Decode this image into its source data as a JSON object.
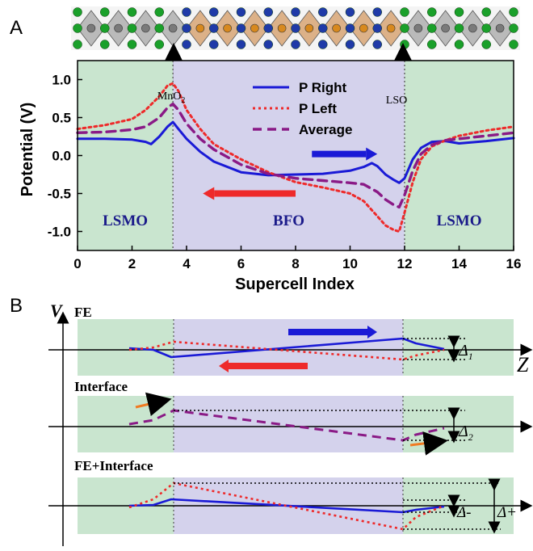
{
  "colors": {
    "lsmo_region": "#c9e5cf",
    "bfo_region": "#d4d2ec",
    "p_right": "#1a1ad6",
    "p_left": "#ee2a2a",
    "average": "#8a1a86",
    "interface_arrow": "#f07a22",
    "atom_green": "#1aa02a",
    "atom_blue": "#1f3aa8",
    "octa_gray": "#8a8a8a",
    "octa_orange": "#c87a30"
  },
  "panels": {
    "a_label": "A",
    "b_label": "B"
  },
  "chart_data": {
    "type": "line",
    "xlabel": "Supercell Index",
    "ylabel": "Potential (V)",
    "xlim": [
      0,
      16
    ],
    "ylim": [
      -1.25,
      1.25
    ],
    "xticks": [
      0,
      2,
      4,
      6,
      8,
      10,
      12,
      14,
      16
    ],
    "yticks": [
      1.0,
      0.5,
      0.0,
      -0.5,
      -1.0
    ],
    "ytick_labels": [
      "1.0",
      "0.5",
      "0.0",
      "-0.5",
      "-1.0"
    ],
    "legend_position": "top-center",
    "regions": [
      {
        "label": "LSMO",
        "from": 0,
        "to": 3.5
      },
      {
        "label": "BFO",
        "from": 3.5,
        "to": 12
      },
      {
        "label": "LSMO",
        "from": 12,
        "to": 16
      }
    ],
    "interfaces": [
      {
        "label": "MnO2",
        "label_main": "MnO",
        "label_sub": "2",
        "x": 3.5
      },
      {
        "label": "LSO",
        "x": 12
      }
    ],
    "series": [
      {
        "name": "P Right",
        "style": "solid",
        "x": [
          0,
          1,
          2,
          2.5,
          2.7,
          3.0,
          3.3,
          3.5,
          3.7,
          4.0,
          4.5,
          5.0,
          6.0,
          7.0,
          8.0,
          9.0,
          10.0,
          10.5,
          10.8,
          11.0,
          11.3,
          11.6,
          11.8,
          12.0,
          12.3,
          12.6,
          13.0,
          13.5,
          14.0,
          15.0,
          16.0
        ],
        "values": [
          0.22,
          0.22,
          0.21,
          0.18,
          0.15,
          0.25,
          0.38,
          0.44,
          0.35,
          0.22,
          0.05,
          -0.08,
          -0.22,
          -0.26,
          -0.25,
          -0.24,
          -0.2,
          -0.15,
          -0.1,
          -0.14,
          -0.25,
          -0.32,
          -0.36,
          -0.3,
          -0.05,
          0.1,
          0.18,
          0.19,
          0.16,
          0.19,
          0.23
        ]
      },
      {
        "name": "P Left",
        "style": "dotted",
        "x": [
          0,
          1,
          2,
          2.5,
          3.0,
          3.3,
          3.5,
          3.7,
          4.0,
          4.5,
          5.0,
          6.0,
          7.0,
          8.0,
          9.0,
          10.0,
          10.5,
          11.0,
          11.3,
          11.6,
          11.8,
          12.0,
          12.3,
          12.6,
          13.0,
          13.5,
          14.0,
          15.0,
          16.0
        ],
        "values": [
          0.35,
          0.4,
          0.48,
          0.6,
          0.78,
          0.92,
          0.95,
          0.85,
          0.6,
          0.35,
          0.15,
          -0.05,
          -0.22,
          -0.35,
          -0.42,
          -0.5,
          -0.6,
          -0.8,
          -0.92,
          -0.98,
          -1.0,
          -0.75,
          -0.35,
          -0.05,
          0.12,
          0.2,
          0.26,
          0.33,
          0.38
        ]
      },
      {
        "name": "Average",
        "style": "dashed",
        "x": [
          0,
          1,
          2,
          2.5,
          3.0,
          3.3,
          3.5,
          3.7,
          4.0,
          4.5,
          5.0,
          6.0,
          7.0,
          8.0,
          9.0,
          10.0,
          10.5,
          11.0,
          11.3,
          11.6,
          11.8,
          12.0,
          12.3,
          12.6,
          13.0,
          13.5,
          14.0,
          15.0,
          16.0
        ],
        "values": [
          0.3,
          0.31,
          0.34,
          0.38,
          0.5,
          0.63,
          0.68,
          0.6,
          0.42,
          0.22,
          0.08,
          -0.12,
          -0.24,
          -0.3,
          -0.33,
          -0.36,
          -0.38,
          -0.48,
          -0.58,
          -0.65,
          -0.68,
          -0.52,
          -0.2,
          0.02,
          0.14,
          0.2,
          0.22,
          0.26,
          0.3
        ]
      }
    ],
    "p_arrows": [
      {
        "series": "P Right",
        "direction": "right",
        "from_x": 8.6,
        "to_x": 11.0,
        "y": 0.02
      },
      {
        "series": "P Left",
        "direction": "left",
        "from_x": 8.0,
        "to_x": 4.6,
        "y": -0.5
      }
    ]
  },
  "schematic": {
    "v_axis_label": "V",
    "z_axis_label": "Z",
    "rows": [
      {
        "title": "FE",
        "delta_label": "Δ",
        "delta_sub": "1"
      },
      {
        "title": "Interface",
        "delta_label": "Δ",
        "delta_sub": "2"
      },
      {
        "title": "FE+Interface",
        "delta_minus_label": "Δ-",
        "delta_plus_label": "Δ+"
      }
    ]
  }
}
